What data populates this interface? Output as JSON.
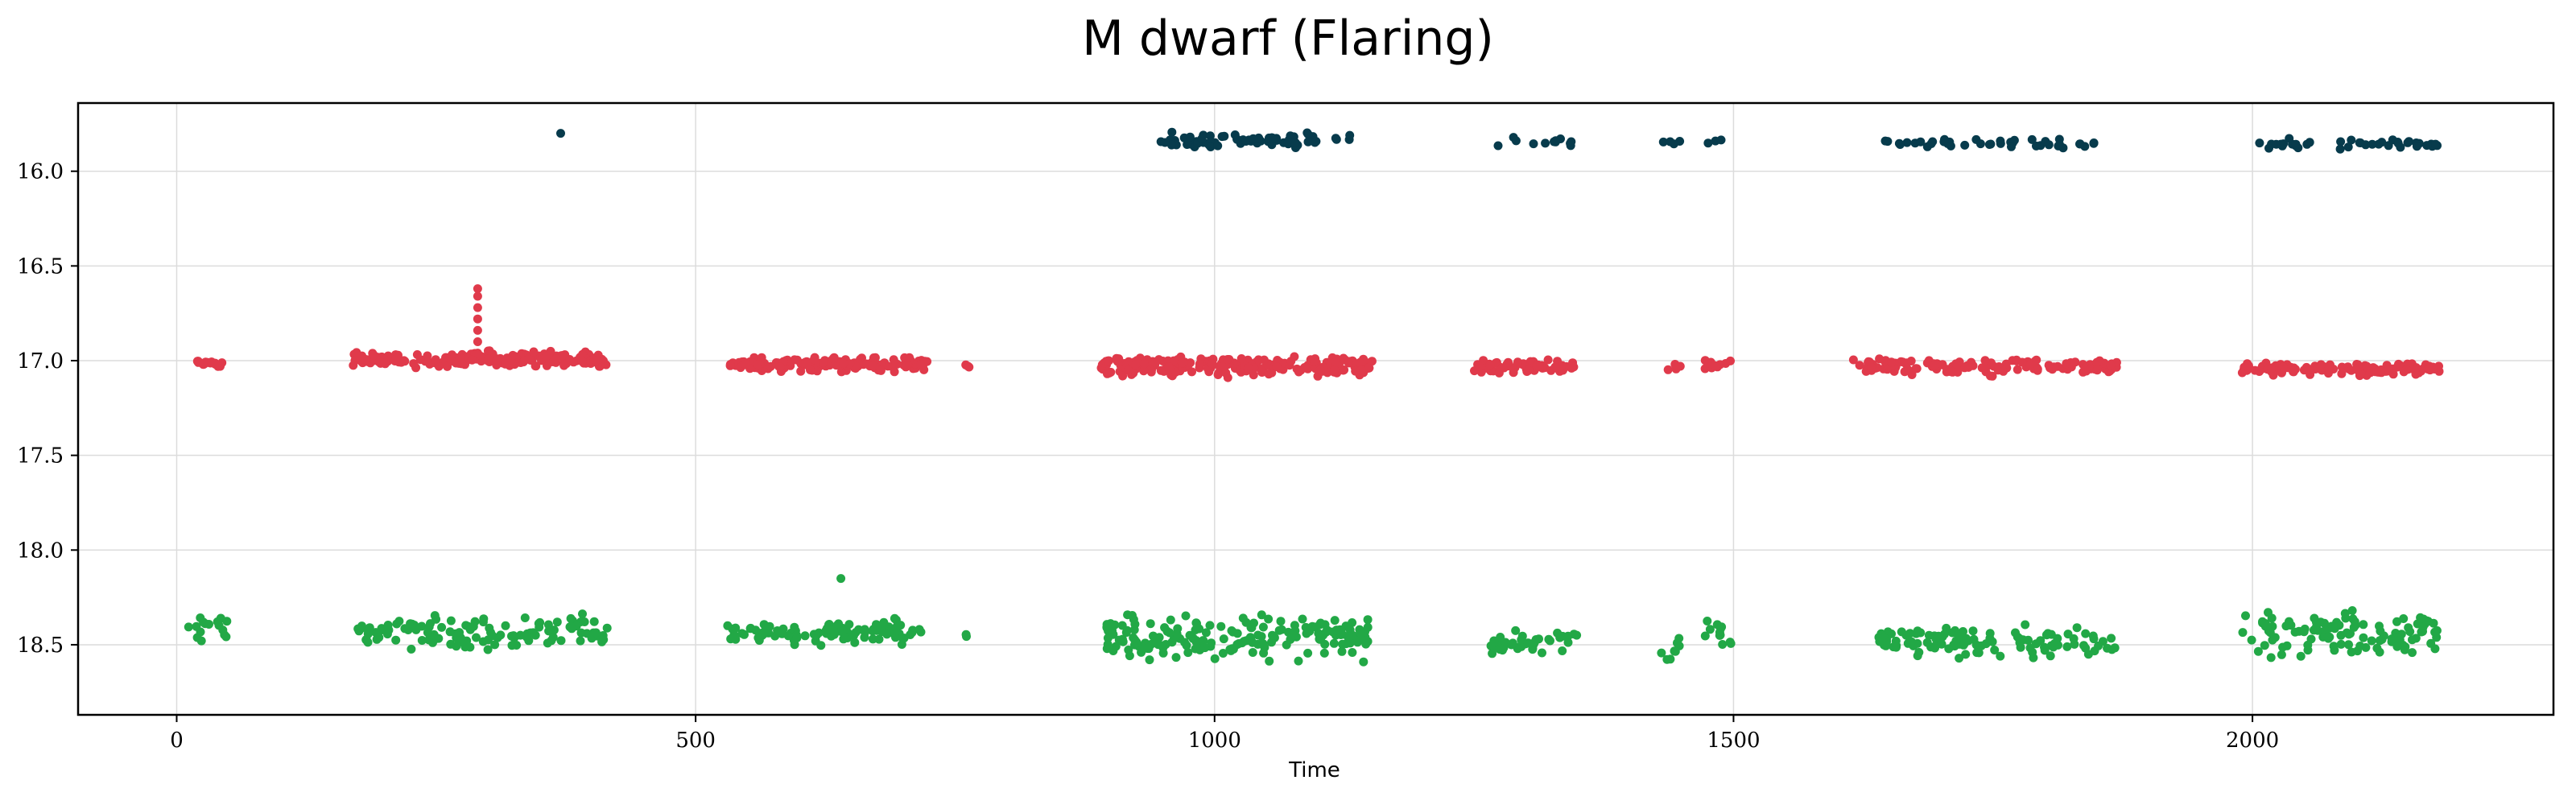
{
  "chart_data": {
    "type": "scatter",
    "title": "M dwarf (Flaring)",
    "xlabel": "Time",
    "ylabel": "",
    "xlim": [
      -95,
      2290
    ],
    "ylim": [
      18.87,
      15.64
    ],
    "y_inverted": true,
    "grid": true,
    "legend": "none",
    "xticks": [
      0,
      500,
      1000,
      1500,
      2000
    ],
    "xtick_labels": [
      "0",
      "500",
      "1000",
      "1500",
      "2000"
    ],
    "yticks": [
      16.0,
      16.5,
      17.0,
      17.5,
      18.0,
      18.5
    ],
    "ytick_labels": [
      "16.0",
      "16.5",
      "17.0",
      "17.5",
      "18.0",
      "18.5"
    ],
    "series": [
      {
        "color": "#073b4c",
        "clusters": [
          {
            "x": [
              370,
              370
            ],
            "y": [
              15.8,
              15.8
            ],
            "n": 1
          },
          {
            "x": [
              940,
              1135
            ],
            "y": [
              15.78,
              15.89
            ],
            "n": 70
          },
          {
            "x": [
              1265,
              1345
            ],
            "y": [
              15.81,
              15.88
            ],
            "n": 12
          },
          {
            "x": [
              1430,
              1450
            ],
            "y": [
              15.83,
              15.86
            ],
            "n": 4
          },
          {
            "x": [
              1475,
              1495
            ],
            "y": [
              15.83,
              15.86
            ],
            "n": 3
          },
          {
            "x": [
              1645,
              1855
            ],
            "y": [
              15.82,
              15.89
            ],
            "n": 40
          },
          {
            "x": [
              1990,
              2180
            ],
            "y": [
              15.82,
              15.89
            ],
            "n": 40
          }
        ]
      },
      {
        "color": "#e03a4b",
        "flare": {
          "x": 290,
          "y_values": [
            16.62,
            16.66,
            16.72,
            16.78,
            16.84,
            16.9,
            16.96
          ]
        },
        "clusters": [
          {
            "x": [
              20,
              45
            ],
            "y": [
              16.98,
              17.05
            ],
            "n": 18
          },
          {
            "x": [
              168,
              415
            ],
            "y": [
              16.94,
              17.05
            ],
            "n": 190
          },
          {
            "x": [
              530,
              725
            ],
            "y": [
              16.97,
              17.07
            ],
            "n": 150
          },
          {
            "x": [
              760,
              765
            ],
            "y": [
              17.0,
              17.04
            ],
            "n": 3
          },
          {
            "x": [
              890,
              1155
            ],
            "y": [
              16.95,
              17.1
            ],
            "n": 240
          },
          {
            "x": [
              1250,
              1350
            ],
            "y": [
              16.98,
              17.08
            ],
            "n": 60
          },
          {
            "x": [
              1430,
              1450
            ],
            "y": [
              17.0,
              17.07
            ],
            "n": 5
          },
          {
            "x": [
              1470,
              1500
            ],
            "y": [
              16.98,
              17.06
            ],
            "n": 10
          },
          {
            "x": [
              1615,
              1870
            ],
            "y": [
              16.97,
              17.09
            ],
            "n": 130
          },
          {
            "x": [
              1990,
              2180
            ],
            "y": [
              17.0,
              17.09
            ],
            "n": 130
          }
        ]
      },
      {
        "color": "#22a846",
        "clusters": [
          {
            "x": [
              10,
              50
            ],
            "y": [
              18.3,
              18.55
            ],
            "n": 16
          },
          {
            "x": [
              170,
              420
            ],
            "y": [
              18.3,
              18.56
            ],
            "n": 120
          },
          {
            "x": [
              530,
              720
            ],
            "y": [
              18.35,
              18.52
            ],
            "n": 110
          },
          {
            "x": [
              640,
              640
            ],
            "y": [
              18.15,
              18.15
            ],
            "n": 1
          },
          {
            "x": [
              760,
              765
            ],
            "y": [
              18.43,
              18.47
            ],
            "n": 2
          },
          {
            "x": [
              895,
              1150
            ],
            "y": [
              18.3,
              18.62
            ],
            "n": 190
          },
          {
            "x": [
              1265,
              1350
            ],
            "y": [
              18.4,
              18.58
            ],
            "n": 40
          },
          {
            "x": [
              1430,
              1450
            ],
            "y": [
              18.42,
              18.64
            ],
            "n": 8
          },
          {
            "x": [
              1470,
              1500
            ],
            "y": [
              18.3,
              18.56
            ],
            "n": 12
          },
          {
            "x": [
              1640,
              1870
            ],
            "y": [
              18.38,
              18.6
            ],
            "n": 110
          },
          {
            "x": [
              1990,
              2180
            ],
            "y": [
              18.28,
              18.62
            ],
            "n": 110
          }
        ]
      }
    ]
  }
}
